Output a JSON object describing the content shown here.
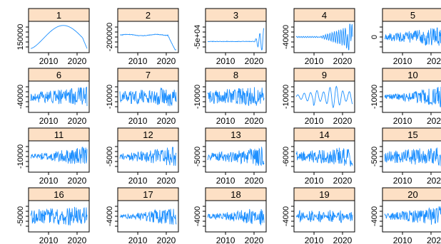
{
  "chart_data": {
    "type": "line",
    "layout": "small-multiples grid, 4 rows x 5 columns",
    "line_color": "#1e90ff",
    "strip_color": "#fde0c5",
    "x_tick_labels": [
      "2010",
      "2020"
    ],
    "panels": [
      {
        "title": "1",
        "y_tick_label": "150000"
      },
      {
        "title": "2",
        "y_tick_label": "-200000"
      },
      {
        "title": "3",
        "y_tick_label": "-5e+04"
      },
      {
        "title": "4",
        "y_tick_label": "-40000"
      },
      {
        "title": "5",
        "y_tick_label": "0"
      },
      {
        "title": "6",
        "y_tick_label": "-40000"
      },
      {
        "title": "7",
        "y_tick_label": "-10000"
      },
      {
        "title": "8",
        "y_tick_label": "-10000"
      },
      {
        "title": "9",
        "y_tick_label": "-10000"
      },
      {
        "title": "10",
        "y_tick_label": "-10000"
      },
      {
        "title": "11",
        "y_tick_label": "-10000"
      },
      {
        "title": "12",
        "y_tick_label": "-5000"
      },
      {
        "title": "13",
        "y_tick_label": "-5000"
      },
      {
        "title": "14",
        "y_tick_label": "-6000"
      },
      {
        "title": "15",
        "y_tick_label": "-5000"
      },
      {
        "title": "16",
        "y_tick_label": "-5000"
      },
      {
        "title": "17",
        "y_tick_label": "-4000"
      },
      {
        "title": "18",
        "y_tick_label": "-4000"
      },
      {
        "title": "19",
        "y_tick_label": "-4000"
      },
      {
        "title": "20",
        "y_tick_label": "-4000"
      }
    ]
  }
}
